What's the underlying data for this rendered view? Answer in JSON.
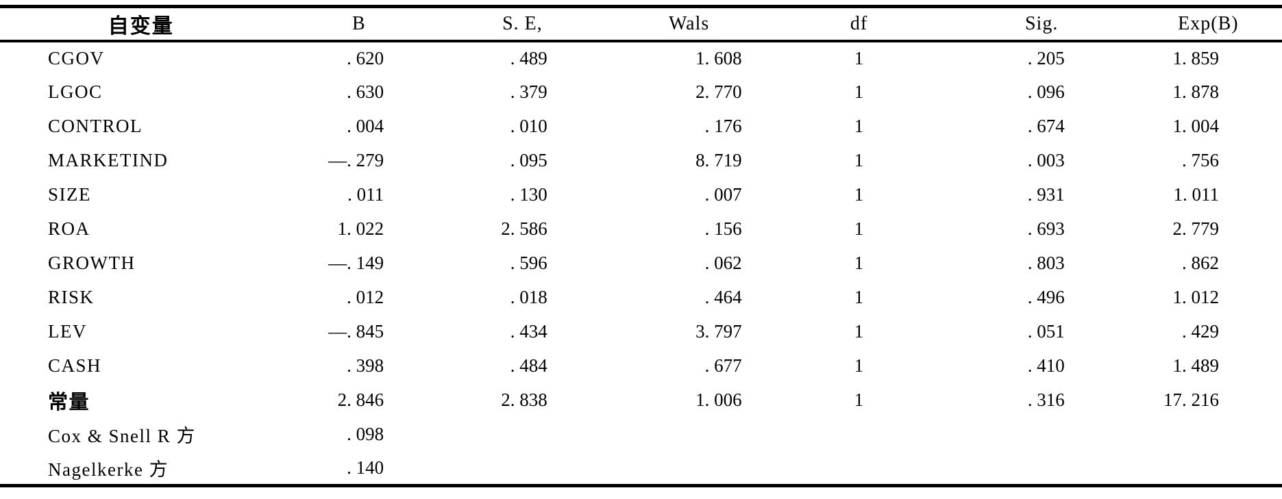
{
  "table": {
    "columns": [
      "自变量",
      "B",
      "S. E,",
      "Wals",
      "df",
      "Sig.",
      "Exp(B)"
    ],
    "rows": [
      {
        "bold": false,
        "cells": [
          "CGOV",
          ". 620",
          ". 489",
          "1. 608",
          "1",
          ". 205",
          "1. 859"
        ]
      },
      {
        "bold": false,
        "cells": [
          "LGOC",
          ". 630",
          ". 379",
          "2. 770",
          "1",
          ". 096",
          "1. 878"
        ]
      },
      {
        "bold": false,
        "cells": [
          "CONTROL",
          ". 004",
          ". 010",
          ". 176",
          "1",
          ". 674",
          "1. 004"
        ]
      },
      {
        "bold": false,
        "cells": [
          "MARKETIND",
          "—. 279",
          ". 095",
          "8. 719",
          "1",
          ". 003",
          ". 756"
        ]
      },
      {
        "bold": false,
        "cells": [
          "SIZE",
          ". 011",
          ". 130",
          ". 007",
          "1",
          ". 931",
          "1. 011"
        ]
      },
      {
        "bold": false,
        "cells": [
          "ROA",
          "1. 022",
          "2. 586",
          ". 156",
          "1",
          ". 693",
          "2. 779"
        ]
      },
      {
        "bold": false,
        "cells": [
          "GROWTH",
          "—. 149",
          ". 596",
          ". 062",
          "1",
          ". 803",
          ". 862"
        ]
      },
      {
        "bold": false,
        "cells": [
          "RISK",
          ". 012",
          ". 018",
          ". 464",
          "1",
          ". 496",
          "1. 012"
        ]
      },
      {
        "bold": false,
        "cells": [
          "LEV",
          "—. 845",
          ". 434",
          "3. 797",
          "1",
          ". 051",
          ". 429"
        ]
      },
      {
        "bold": false,
        "cells": [
          "CASH",
          ". 398",
          ". 484",
          ". 677",
          "1",
          ". 410",
          "1. 489"
        ]
      },
      {
        "bold": true,
        "cells": [
          "常量",
          "2. 846",
          "2. 838",
          "1. 006",
          "1",
          ". 316",
          "17. 216"
        ]
      },
      {
        "bold": false,
        "cells": [
          "Cox & Snell R 方",
          ". 098",
          "",
          "",
          "",
          "",
          ""
        ]
      },
      {
        "bold": false,
        "cells": [
          "Nagelkerke 方",
          ". 140",
          "",
          "",
          "",
          "",
          ""
        ]
      }
    ]
  }
}
